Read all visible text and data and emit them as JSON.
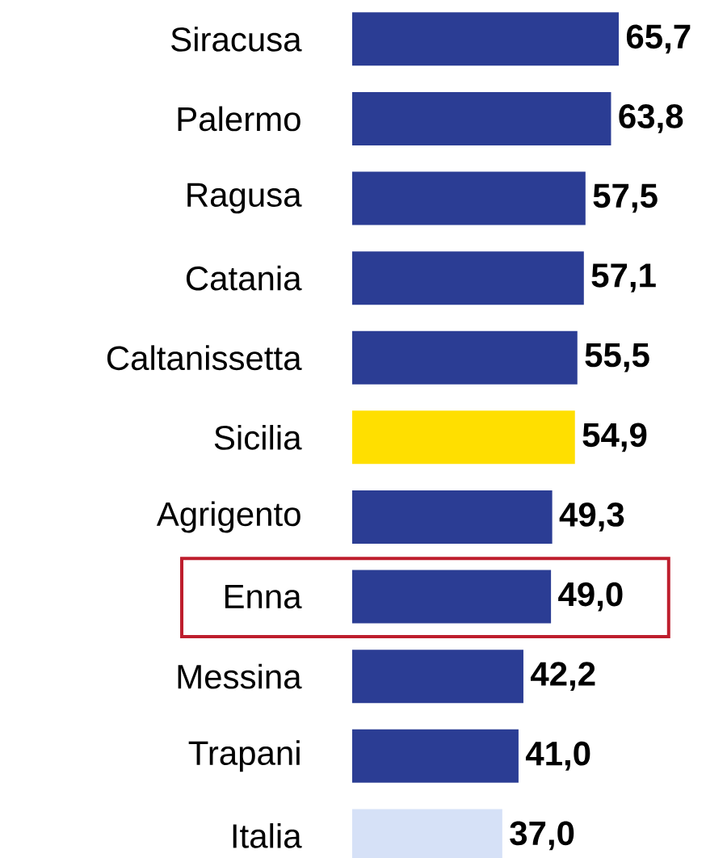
{
  "chart_data": {
    "type": "bar",
    "orientation": "horizontal",
    "categories": [
      "Siracusa",
      "Palermo",
      "Ragusa",
      "Catania",
      "Caltanissetta",
      "Sicilia",
      "Agrigento",
      "Enna",
      "Messina",
      "Trapani",
      "Italia"
    ],
    "values": [
      65.7,
      63.8,
      57.5,
      57.1,
      55.5,
      54.9,
      49.3,
      49.0,
      42.2,
      41.0,
      37.0
    ],
    "value_labels": [
      "65,7",
      "63,8",
      "57,5",
      "57,1",
      "55,5",
      "54,9",
      "49,3",
      "49,0",
      "42,2",
      "41,0",
      "37,0"
    ],
    "colors": [
      "#2b3d94",
      "#2b3d94",
      "#2b3d94",
      "#2b3d94",
      "#2b3d94",
      "#ffdf00",
      "#2b3d94",
      "#2b3d94",
      "#2b3d94",
      "#2b3d94",
      "#d6e1f7"
    ],
    "tick_labels": "y"
  }
}
